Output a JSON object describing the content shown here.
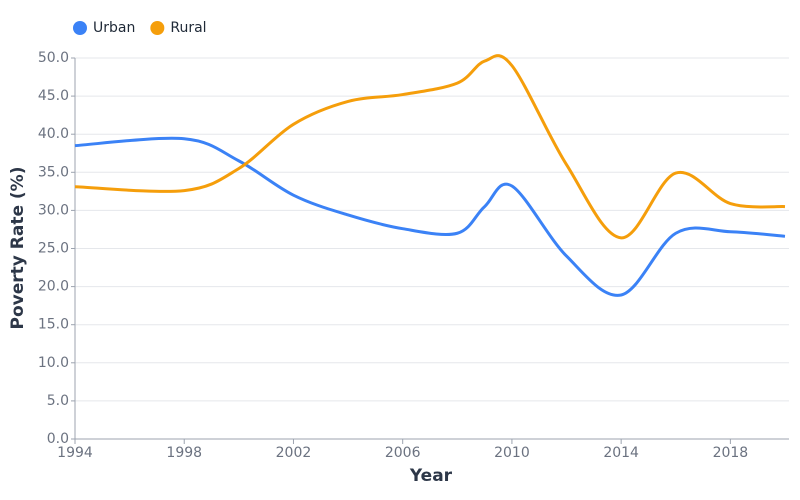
{
  "chart_data": {
    "type": "line",
    "x_label": "Year",
    "y_label": "Poverty Rate (%)",
    "x": [
      1994,
      1998,
      2000,
      2002,
      2004,
      2006,
      2008,
      2009,
      2010,
      2012,
      2014,
      2016,
      2018,
      2020
    ],
    "series": [
      {
        "name": "Urban",
        "color": "#3b82f6",
        "values": [
          38.5,
          39.4,
          36.5,
          32.0,
          29.4,
          27.6,
          27.0,
          30.5,
          33.2,
          24.0,
          18.9,
          27.0,
          27.2,
          26.6
        ]
      },
      {
        "name": "Rural",
        "color": "#f59e0b",
        "values": [
          33.1,
          32.6,
          35.5,
          41.3,
          44.3,
          45.2,
          46.7,
          49.6,
          49.0,
          36.0,
          26.4,
          34.9,
          30.9,
          30.5
        ]
      }
    ],
    "xlim": [
      1994,
      2020
    ],
    "xticks": [
      1994,
      1998,
      2002,
      2006,
      2010,
      2014,
      2018
    ],
    "ylim": [
      0,
      50
    ],
    "yticks": [
      {
        "value": 0,
        "label": "0.0"
      },
      {
        "value": 5,
        "label": "5.0"
      },
      {
        "value": 10,
        "label": "10.0"
      },
      {
        "value": 15,
        "label": "15.0"
      },
      {
        "value": 20,
        "label": "20.0"
      },
      {
        "value": 25,
        "label": "25.0"
      },
      {
        "value": 30,
        "label": "30.0"
      },
      {
        "value": 35,
        "label": "35.0"
      },
      {
        "value": 40,
        "label": "40.0"
      },
      {
        "value": 45,
        "label": "45.0"
      },
      {
        "value": 50,
        "label": "50.0"
      }
    ],
    "grid": true,
    "legend": "top-left"
  }
}
